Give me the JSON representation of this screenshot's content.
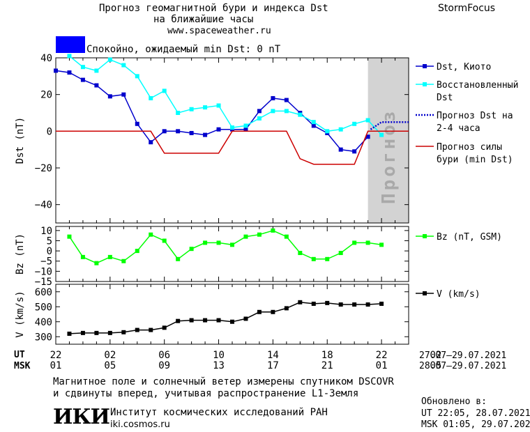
{
  "header": {
    "title_line1": "Прогноз геомагнитной бури и индекса Dst",
    "title_line2": "на ближайшие часы",
    "url": "www.spaceweather.ru",
    "brand": "StormFocus"
  },
  "status": {
    "text": "Спокойно, ожидаемый min Dst: 0 nT",
    "color": "#0000ff"
  },
  "footer": {
    "line1": "Магнитное поле и солнечный ветер измерены спутником DSCOVR",
    "line2": "и сдвинуты вперед, учитывая распространение L1-Земля",
    "logo": "ИКИ",
    "institute": "Институт космических исследований РАН",
    "site": "iki.cosmos.ru",
    "updated_label": "Обновлено в:",
    "updated_ut": "UT  22:05, 28.07.2021",
    "updated_msk": "MSK 01:05, 29.07.2021"
  },
  "chart_data": {
    "type": "line",
    "time_axis": {
      "ut_label": "UT",
      "msk_label": "MSK",
      "ut_ticks": [
        "22",
        "02",
        "06",
        "10",
        "14",
        "18",
        "22",
        "02"
      ],
      "msk_ticks": [
        "01",
        "05",
        "09",
        "13",
        "17",
        "21",
        "01",
        "05"
      ],
      "ut_range": "27.07–29.07.2021",
      "msk_range": "28.07–29.07.2021"
    },
    "forecast_label": "Прогноз",
    "panels": [
      {
        "id": "dst",
        "ylabel": "Dst (nT)",
        "ylim": [
          -50,
          40
        ],
        "yticks": [
          40,
          20,
          0,
          -20,
          -40
        ],
        "series": [
          {
            "name": "Dst, Киото",
            "color": "#0000cc",
            "marker": "square",
            "x": [
              0,
              1,
              2,
              3,
              4,
              5,
              6,
              7,
              8,
              9,
              10,
              11,
              12,
              13,
              14,
              15,
              16,
              17,
              18,
              19,
              20,
              21,
              22,
              23
            ],
            "y": [
              33,
              32,
              28,
              25,
              19,
              20,
              4,
              -6,
              0,
              0,
              -1,
              -2,
              1,
              1,
              1,
              11,
              18,
              17,
              10,
              3,
              -1,
              -10,
              -11,
              -3
            ]
          },
          {
            "name": "Восстановленный Dst",
            "color": "#00ffff",
            "marker": "square",
            "x": [
              1,
              2,
              3,
              4,
              5,
              6,
              7,
              8,
              9,
              10,
              11,
              12,
              13,
              14,
              15,
              16,
              17,
              18,
              19,
              20,
              21,
              22,
              23,
              24
            ],
            "y": [
              41,
              35,
              33,
              39,
              36,
              30,
              18,
              22,
              10,
              12,
              13,
              14,
              2,
              3,
              7,
              11,
              11,
              9,
              5,
              0,
              1,
              4,
              6,
              -2
            ]
          },
          {
            "name": "Прогноз Dst на 2-4 часа",
            "color": "#0000cc",
            "style": "dotted",
            "x": [
              23.2,
              24,
              25,
              26
            ],
            "y": [
              1,
              5,
              5,
              5
            ]
          },
          {
            "name": "Прогноз силы бури (min Dst)",
            "color": "#cc0000",
            "x": [
              0,
              7,
              8,
              12,
              13,
              17,
              18,
              19,
              22,
              23,
              26
            ],
            "y": [
              0,
              0,
              -12,
              -12,
              0,
              0,
              -15,
              -18,
              -18,
              0,
              0
            ]
          }
        ]
      },
      {
        "id": "bz",
        "ylabel": "Bz (nT)",
        "ylim": [
          -15,
          12
        ],
        "yticks": [
          10,
          5,
          0,
          -5,
          -10,
          -15
        ],
        "series": [
          {
            "name": "Bz (nT, GSM)",
            "color": "#00ff00",
            "marker": "square",
            "x": [
              1,
              2,
              3,
              4,
              5,
              6,
              7,
              8,
              9,
              10,
              11,
              12,
              13,
              14,
              15,
              16,
              17,
              18,
              19,
              20,
              21,
              22,
              23,
              24
            ],
            "y": [
              7,
              -3,
              -6,
              -3,
              -5,
              0,
              8,
              5,
              -4,
              1,
              4,
              4,
              3,
              7,
              8,
              10,
              7,
              -1,
              -4,
              -4,
              -1,
              4,
              4,
              3
            ]
          }
        ]
      },
      {
        "id": "v",
        "ylabel": "V (km/s)",
        "ylim": [
          250,
          650
        ],
        "yticks": [
          600,
          500,
          400,
          300
        ],
        "series": [
          {
            "name": "V (km/s)",
            "color": "#000000",
            "marker": "square",
            "x": [
              1,
              2,
              3,
              4,
              5,
              6,
              7,
              8,
              9,
              10,
              11,
              12,
              13,
              14,
              15,
              16,
              17,
              18,
              19,
              20,
              21,
              22,
              23,
              24
            ],
            "y": [
              320,
              325,
              325,
              325,
              330,
              345,
              345,
              360,
              405,
              410,
              410,
              410,
              400,
              420,
              465,
              465,
              490,
              530,
              520,
              525,
              515,
              515,
              515,
              520
            ]
          }
        ]
      }
    ]
  }
}
